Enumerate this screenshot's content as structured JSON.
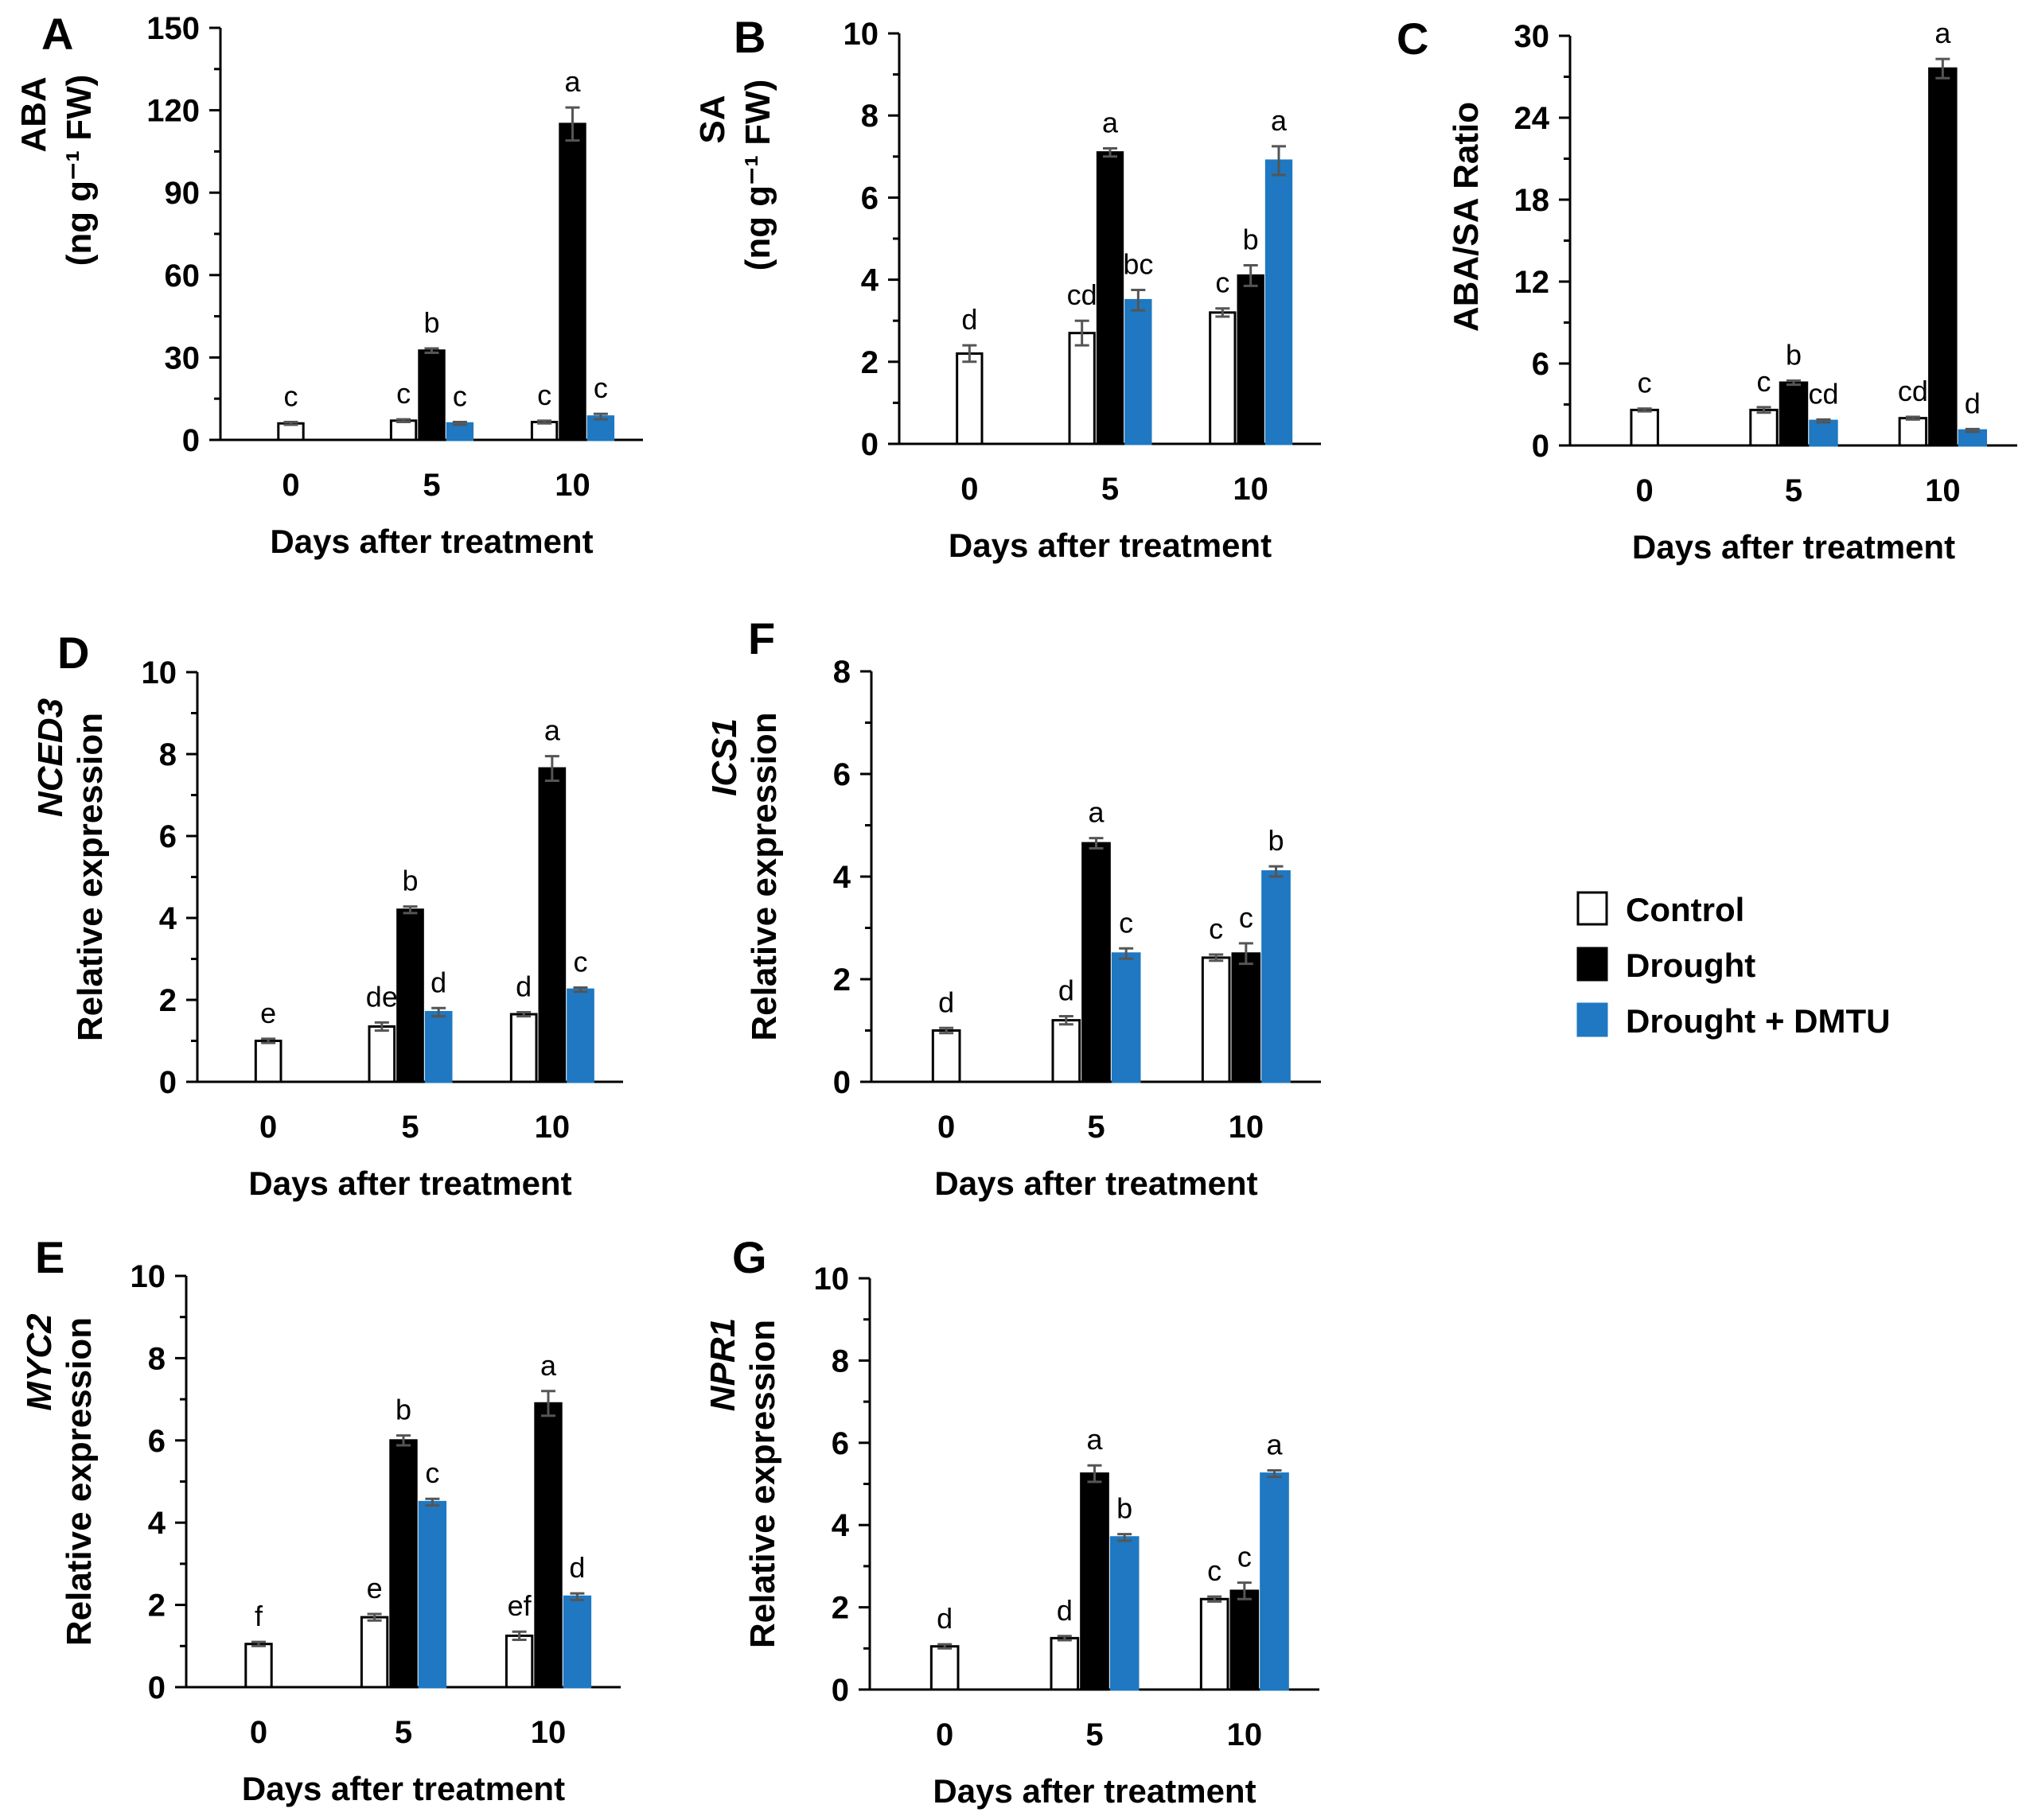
{
  "colors": {
    "Control": "#ffffff",
    "Drought": "#000000",
    "Drought + DMTU": "#1f78c1",
    "error_bar": "#555555"
  },
  "legend": {
    "items": [
      "Control",
      "Drought",
      "Drought + DMTU"
    ]
  },
  "chart_data": [
    {
      "panel": "A",
      "type": "bar",
      "title": "",
      "ylabel_lines": [
        "ABA",
        "(ng g⁻¹ FW)"
      ],
      "xlabel": "Days after treatment",
      "categories": [
        "0",
        "5",
        "10"
      ],
      "ylim": [
        0,
        150
      ],
      "yticks": [
        0,
        30,
        60,
        90,
        120,
        150
      ],
      "series": [
        {
          "name": "Control",
          "values": [
            6,
            7,
            6.5
          ],
          "errors": [
            0.5,
            0.5,
            0.5
          ],
          "labels": [
            "c",
            "c",
            "c"
          ]
        },
        {
          "name": "Drought",
          "values": [
            null,
            32.5,
            115
          ],
          "errors": [
            null,
            0.8,
            6
          ],
          "labels": [
            "",
            "b",
            "a"
          ]
        },
        {
          "name": "Drought + DMTU",
          "values": [
            null,
            6,
            8.5
          ],
          "errors": [
            null,
            0.5,
            1
          ],
          "labels": [
            "",
            "c",
            "c"
          ]
        }
      ]
    },
    {
      "panel": "B",
      "type": "bar",
      "title": "",
      "ylabel_lines": [
        "SA",
        "(ng g⁻¹ FW)"
      ],
      "xlabel": "Days after treatment",
      "categories": [
        "0",
        "5",
        "10"
      ],
      "ylim": [
        0,
        10
      ],
      "yticks": [
        0,
        2,
        4,
        6,
        8,
        10
      ],
      "series": [
        {
          "name": "Control",
          "values": [
            2.2,
            2.7,
            3.2
          ],
          "errors": [
            0.2,
            0.3,
            0.1
          ],
          "labels": [
            "d",
            "cd",
            "c"
          ]
        },
        {
          "name": "Drought",
          "values": [
            null,
            7.1,
            4.1
          ],
          "errors": [
            null,
            0.1,
            0.25
          ],
          "labels": [
            "",
            "a",
            "b"
          ]
        },
        {
          "name": "Drought + DMTU",
          "values": [
            null,
            3.5,
            6.9
          ],
          "errors": [
            null,
            0.25,
            0.35
          ],
          "labels": [
            "",
            "bc",
            "a"
          ]
        }
      ]
    },
    {
      "panel": "C",
      "type": "bar",
      "title": "",
      "ylabel_lines": [
        "ABA/SA Ratio"
      ],
      "xlabel": "Days after treatment",
      "categories": [
        "0",
        "5",
        "10"
      ],
      "ylim": [
        0,
        30
      ],
      "yticks": [
        0,
        6,
        12,
        18,
        24,
        30
      ],
      "series": [
        {
          "name": "Control",
          "values": [
            2.6,
            2.6,
            2.0
          ],
          "errors": [
            0.1,
            0.2,
            0.1
          ],
          "labels": [
            "c",
            "c",
            "cd"
          ]
        },
        {
          "name": "Drought",
          "values": [
            null,
            4.6,
            27.6
          ],
          "errors": [
            null,
            0.15,
            0.7
          ],
          "labels": [
            "",
            "b",
            "a"
          ]
        },
        {
          "name": "Drought + DMTU",
          "values": [
            null,
            1.8,
            1.1
          ],
          "errors": [
            null,
            0.1,
            0.1
          ],
          "labels": [
            "",
            "cd",
            "d"
          ]
        }
      ]
    },
    {
      "panel": "D",
      "type": "bar",
      "title": "",
      "gene": "NCED3",
      "ylabel_lines": [
        "Relative expression"
      ],
      "xlabel": "Days after treatment",
      "categories": [
        "0",
        "5",
        "10"
      ],
      "ylim": [
        0,
        10
      ],
      "yticks": [
        0,
        2,
        4,
        6,
        8,
        10
      ],
      "series": [
        {
          "name": "Control",
          "values": [
            1.0,
            1.35,
            1.65
          ],
          "errors": [
            0.05,
            0.1,
            0.05
          ],
          "labels": [
            "e",
            "de",
            "d"
          ]
        },
        {
          "name": "Drought",
          "values": [
            null,
            4.2,
            7.65
          ],
          "errors": [
            null,
            0.08,
            0.3
          ],
          "labels": [
            "",
            "b",
            "a"
          ]
        },
        {
          "name": "Drought + DMTU",
          "values": [
            null,
            1.7,
            2.25
          ],
          "errors": [
            null,
            0.1,
            0.05
          ],
          "labels": [
            "",
            "d",
            "c"
          ]
        }
      ]
    },
    {
      "panel": "E",
      "type": "bar",
      "title": "",
      "gene": "MYC2",
      "ylabel_lines": [
        "Relative expression"
      ],
      "xlabel": "Days after treatment",
      "categories": [
        "0",
        "5",
        "10"
      ],
      "ylim": [
        0,
        10
      ],
      "yticks": [
        0,
        2,
        4,
        6,
        8,
        10
      ],
      "series": [
        {
          "name": "Control",
          "values": [
            1.05,
            1.7,
            1.25
          ],
          "errors": [
            0.05,
            0.08,
            0.1
          ],
          "labels": [
            "f",
            "e",
            "ef"
          ]
        },
        {
          "name": "Drought",
          "values": [
            null,
            6.0,
            6.9
          ],
          "errors": [
            null,
            0.12,
            0.3
          ],
          "labels": [
            "",
            "b",
            "a"
          ]
        },
        {
          "name": "Drought + DMTU",
          "values": [
            null,
            4.5,
            2.2
          ],
          "errors": [
            null,
            0.08,
            0.08
          ],
          "labels": [
            "",
            "c",
            "d"
          ]
        }
      ]
    },
    {
      "panel": "F",
      "type": "bar",
      "title": "",
      "gene": "ICS1",
      "ylabel_lines": [
        "Relative expression"
      ],
      "xlabel": "Days after treatment",
      "categories": [
        "0",
        "5",
        "10"
      ],
      "ylim": [
        0,
        8
      ],
      "yticks": [
        0,
        2,
        4,
        6,
        8
      ],
      "series": [
        {
          "name": "Control",
          "values": [
            1.0,
            1.2,
            2.42
          ],
          "errors": [
            0.05,
            0.08,
            0.06
          ],
          "labels": [
            "d",
            "d",
            "c"
          ]
        },
        {
          "name": "Drought",
          "values": [
            null,
            4.65,
            2.5
          ],
          "errors": [
            null,
            0.1,
            0.2
          ],
          "labels": [
            "",
            "a",
            "c"
          ]
        },
        {
          "name": "Drought + DMTU",
          "values": [
            null,
            2.5,
            4.1
          ],
          "errors": [
            null,
            0.1,
            0.1
          ],
          "labels": [
            "",
            "c",
            "b"
          ]
        }
      ]
    },
    {
      "panel": "G",
      "type": "bar",
      "title": "",
      "gene": "NPR1",
      "ylabel_lines": [
        "Relative expression"
      ],
      "xlabel": "Days after treatment",
      "categories": [
        "0",
        "5",
        "10"
      ],
      "ylim": [
        0,
        10
      ],
      "yticks": [
        0,
        2,
        4,
        6,
        8,
        10
      ],
      "series": [
        {
          "name": "Control",
          "values": [
            1.05,
            1.25,
            2.2
          ],
          "errors": [
            0.05,
            0.05,
            0.06
          ],
          "labels": [
            "d",
            "d",
            "c"
          ]
        },
        {
          "name": "Drought",
          "values": [
            null,
            5.25,
            2.4
          ],
          "errors": [
            null,
            0.2,
            0.2
          ],
          "labels": [
            "",
            "a",
            "c"
          ]
        },
        {
          "name": "Drought + DMTU",
          "values": [
            null,
            3.7,
            5.25
          ],
          "errors": [
            null,
            0.08,
            0.08
          ],
          "labels": [
            "",
            "b",
            "a"
          ]
        }
      ]
    }
  ]
}
